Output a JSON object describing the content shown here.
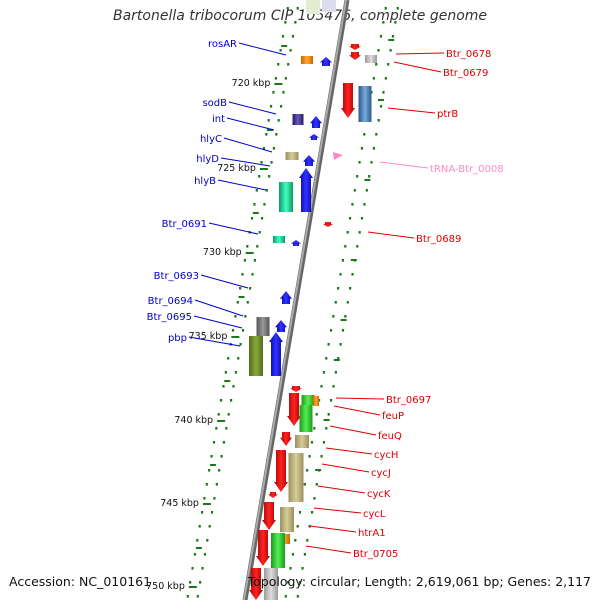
{
  "title": "Bartonella tribocorum CIP 105476, complete genome",
  "footer": {
    "accession": "Accession: NC_010161",
    "summary": "Topology: circular; Length: 2,619,061 bp; Genes: 2,117"
  },
  "colors": {
    "forward_gene": "#0000ee",
    "reverse_gene": "#ee0000",
    "trna": "#ff88cc",
    "backbone": "#888888",
    "tick": "#1a7a1a",
    "forward_label": "#0000cc",
    "reverse_label": "#dd0000"
  },
  "scale_labels": [
    "720 kbp",
    "725 kbp",
    "730 kbp",
    "735 kbp",
    "740 kbp",
    "745 kbp",
    "750 kbp"
  ],
  "left_labels": [
    "rosAR",
    "sodB",
    "int",
    "hlyC",
    "hlyD",
    "hlyB",
    "Btr_0691",
    "Btr_0693",
    "Btr_0694",
    "Btr_0695",
    "pbp"
  ],
  "right_labels": [
    "Btr_0678",
    "Btr_0679",
    "ptrB",
    "tRNA-Btr_0008",
    "Btr_0689",
    "Btr_0697",
    "feuP",
    "feuQ",
    "cycH",
    "cycJ",
    "cycK",
    "cycL",
    "htrA1",
    "Btr_0705"
  ]
}
